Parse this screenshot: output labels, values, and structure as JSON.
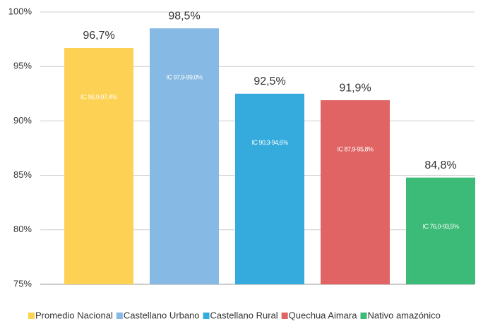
{
  "chart_data": {
    "type": "bar",
    "categories": [
      "Promedio Nacional",
      "Castellano Urbano",
      "Castellano Rural",
      "Quechua Aimara",
      "Nativo amazónico"
    ],
    "values": [
      96.7,
      98.5,
      92.5,
      91.9,
      84.8
    ],
    "value_labels": [
      "96,7%",
      "98,5%",
      "92,5%",
      "91,9%",
      "84,8%"
    ],
    "annotations": [
      "IC 96,0-97,4%",
      "IC 97,9-99,0%",
      "IC 90,3-94,6%",
      "IC 87,9-95,8%",
      "IC 76,0-93,5%"
    ],
    "colors": [
      "#fdd153",
      "#86b9e3",
      "#35abdd",
      "#e06464",
      "#3cbb78"
    ],
    "ylim": [
      75,
      100
    ],
    "yticks": [
      {
        "value": 75,
        "label": "75%"
      },
      {
        "value": 80,
        "label": "80%"
      },
      {
        "value": 85,
        "label": "85%"
      },
      {
        "value": 90,
        "label": "90%"
      },
      {
        "value": 95,
        "label": "95%"
      },
      {
        "value": 100,
        "label": "100%"
      }
    ],
    "grid": true,
    "legend": "bottom"
  }
}
